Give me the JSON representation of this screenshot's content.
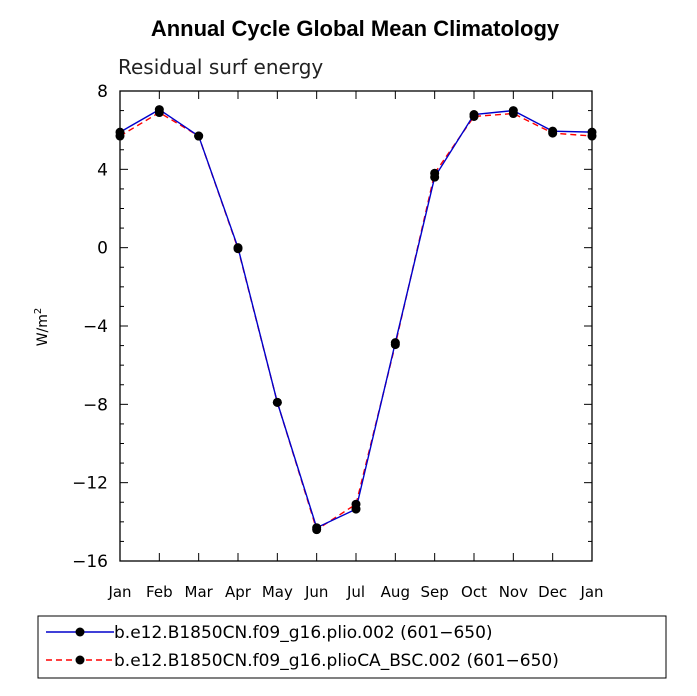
{
  "chart_data": {
    "type": "line",
    "title": "Annual Cycle Global Mean Climatology",
    "subtitle": "Residual surf energy",
    "xlabel": "",
    "ylabel_base": "W/m",
    "ylabel_sup": "2",
    "categories": [
      "Jan",
      "Feb",
      "Mar",
      "Apr",
      "May",
      "Jun",
      "Jul",
      "Aug",
      "Sep",
      "Oct",
      "Nov",
      "Dec",
      "Jan"
    ],
    "ylim": [
      -16,
      8
    ],
    "yticks": [
      8,
      4,
      0,
      -4,
      -8,
      -12,
      -16
    ],
    "ytick_labels": [
      "8",
      "4",
      "0",
      "−12",
      "−16"
    ],
    "ytick_labels_all": [
      "8",
      "4",
      "0",
      "−4",
      "−8",
      "−12",
      "−16"
    ],
    "series": [
      {
        "name": "b.e12.B1850CN.f09_g16.plio.002 (601−650)",
        "color": "#0000cc",
        "dash": "solid",
        "values": [
          5.9,
          7.05,
          5.7,
          0.0,
          -7.9,
          -14.3,
          -13.35,
          -4.85,
          3.6,
          6.8,
          7.0,
          5.95,
          5.9
        ]
      },
      {
        "name": "b.e12.B1850CN.f09_g16.plioCA_BSC.002 (601−650)",
        "color": "#ff0000",
        "dash": "dashed",
        "values": [
          5.7,
          6.9,
          5.7,
          -0.05,
          -7.9,
          -14.4,
          -13.1,
          -4.95,
          3.8,
          6.7,
          6.85,
          5.85,
          5.7
        ]
      }
    ],
    "legend_position": "bottom"
  }
}
